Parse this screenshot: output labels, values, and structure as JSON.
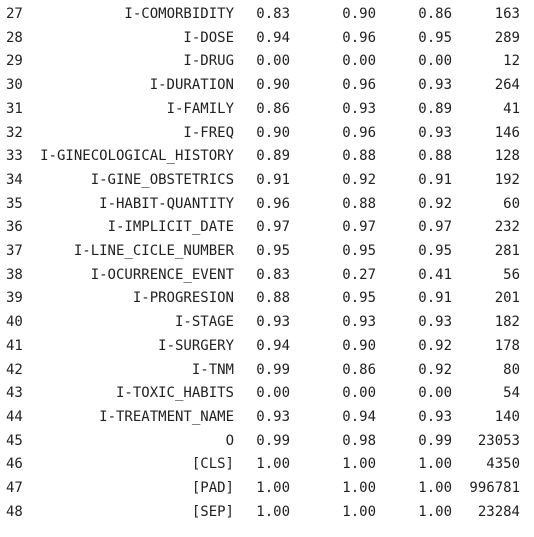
{
  "colors": {
    "text": "#212121",
    "background": "#ffffff"
  },
  "rows": [
    {
      "index": "27",
      "label": "I-COMORBIDITY",
      "precision": "0.83",
      "recall": "0.90",
      "f1": "0.86",
      "support": "163"
    },
    {
      "index": "28",
      "label": "I-DOSE",
      "precision": "0.94",
      "recall": "0.96",
      "f1": "0.95",
      "support": "289"
    },
    {
      "index": "29",
      "label": "I-DRUG",
      "precision": "0.00",
      "recall": "0.00",
      "f1": "0.00",
      "support": "12"
    },
    {
      "index": "30",
      "label": "I-DURATION",
      "precision": "0.90",
      "recall": "0.96",
      "f1": "0.93",
      "support": "264"
    },
    {
      "index": "31",
      "label": "I-FAMILY",
      "precision": "0.86",
      "recall": "0.93",
      "f1": "0.89",
      "support": "41"
    },
    {
      "index": "32",
      "label": "I-FREQ",
      "precision": "0.90",
      "recall": "0.96",
      "f1": "0.93",
      "support": "146"
    },
    {
      "index": "33",
      "label": "I-GINECOLOGICAL_HISTORY",
      "precision": "0.89",
      "recall": "0.88",
      "f1": "0.88",
      "support": "128"
    },
    {
      "index": "34",
      "label": "I-GINE_OBSTETRICS",
      "precision": "0.91",
      "recall": "0.92",
      "f1": "0.91",
      "support": "192"
    },
    {
      "index": "35",
      "label": "I-HABIT-QUANTITY",
      "precision": "0.96",
      "recall": "0.88",
      "f1": "0.92",
      "support": "60"
    },
    {
      "index": "36",
      "label": "I-IMPLICIT_DATE",
      "precision": "0.97",
      "recall": "0.97",
      "f1": "0.97",
      "support": "232"
    },
    {
      "index": "37",
      "label": "I-LINE_CICLE_NUMBER",
      "precision": "0.95",
      "recall": "0.95",
      "f1": "0.95",
      "support": "281"
    },
    {
      "index": "38",
      "label": "I-OCURRENCE_EVENT",
      "precision": "0.83",
      "recall": "0.27",
      "f1": "0.41",
      "support": "56"
    },
    {
      "index": "39",
      "label": "I-PROGRESION",
      "precision": "0.88",
      "recall": "0.95",
      "f1": "0.91",
      "support": "201"
    },
    {
      "index": "40",
      "label": "I-STAGE",
      "precision": "0.93",
      "recall": "0.93",
      "f1": "0.93",
      "support": "182"
    },
    {
      "index": "41",
      "label": "I-SURGERY",
      "precision": "0.94",
      "recall": "0.90",
      "f1": "0.92",
      "support": "178"
    },
    {
      "index": "42",
      "label": "I-TNM",
      "precision": "0.99",
      "recall": "0.86",
      "f1": "0.92",
      "support": "80"
    },
    {
      "index": "43",
      "label": "I-TOXIC_HABITS",
      "precision": "0.00",
      "recall": "0.00",
      "f1": "0.00",
      "support": "54"
    },
    {
      "index": "44",
      "label": "I-TREATMENT_NAME",
      "precision": "0.93",
      "recall": "0.94",
      "f1": "0.93",
      "support": "140"
    },
    {
      "index": "45",
      "label": "O",
      "precision": "0.99",
      "recall": "0.98",
      "f1": "0.99",
      "support": "23053"
    },
    {
      "index": "46",
      "label": "[CLS]",
      "precision": "1.00",
      "recall": "1.00",
      "f1": "1.00",
      "support": "4350"
    },
    {
      "index": "47",
      "label": "[PAD]",
      "precision": "1.00",
      "recall": "1.00",
      "f1": "1.00",
      "support": "996781"
    },
    {
      "index": "48",
      "label": "[SEP]",
      "precision": "1.00",
      "recall": "1.00",
      "f1": "1.00",
      "support": "23284"
    }
  ]
}
